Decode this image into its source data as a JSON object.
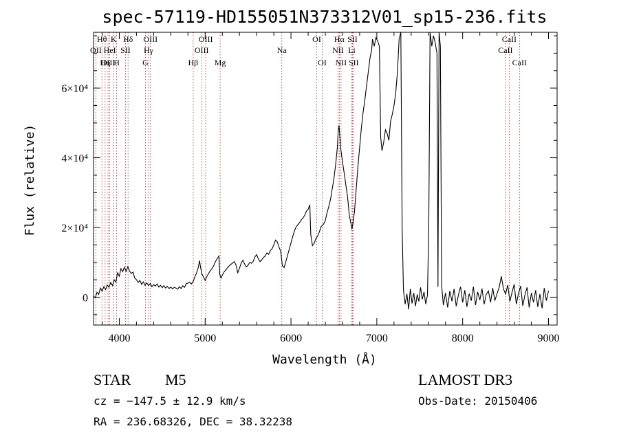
{
  "chart_data": {
    "type": "line",
    "title": "spec-57119-HD155051N373312V01_sp15-236.fits",
    "xlabel": "Wavelength (Å)",
    "ylabel": "Flux (relative)",
    "xlim": [
      3700,
      9100
    ],
    "ylim": [
      -8000,
      76000
    ],
    "x_ticks": [
      4000,
      5000,
      6000,
      7000,
      8000,
      9000
    ],
    "y_ticks": [
      {
        "value": 0,
        "label": "0"
      },
      {
        "value": 20000,
        "label": "2×10⁴"
      },
      {
        "value": 40000,
        "label": "4×10⁴"
      },
      {
        "value": 60000,
        "label": "6×10⁴"
      }
    ],
    "spectral_lines": [
      {
        "label": "Hθ",
        "wavelength": 3798,
        "row": 1
      },
      {
        "label": "OII",
        "wavelength": 3727,
        "row": 2
      },
      {
        "label": "OIII",
        "wavelength": 3869,
        "row": 3
      },
      {
        "label": "K",
        "wavelength": 3934,
        "row": 1
      },
      {
        "label": "Hη",
        "wavelength": 3835,
        "row": 3
      },
      {
        "label": "HeI",
        "wavelength": 3889,
        "row": 2
      },
      {
        "label": "H",
        "wavelength": 3969,
        "row": 3
      },
      {
        "label": "SII",
        "wavelength": 4072,
        "row": 2
      },
      {
        "label": "Hδ",
        "wavelength": 4102,
        "row": 1
      },
      {
        "label": "OIII",
        "wavelength": 4363,
        "row": 1
      },
      {
        "label": "Hγ",
        "wavelength": 4341,
        "row": 2
      },
      {
        "label": "G",
        "wavelength": 4305,
        "row": 3
      },
      {
        "label": "Hβ",
        "wavelength": 4861,
        "row": 3
      },
      {
        "label": "OIII",
        "wavelength": 5007,
        "row": 1
      },
      {
        "label": "OIII",
        "wavelength": 4959,
        "row": 2
      },
      {
        "label": "Mg",
        "wavelength": 5175,
        "row": 3
      },
      {
        "label": "Na",
        "wavelength": 5893,
        "row": 2
      },
      {
        "label": "OI",
        "wavelength": 6300,
        "row": 1
      },
      {
        "label": "OI",
        "wavelength": 6364,
        "row": 3
      },
      {
        "label": "Hα",
        "wavelength": 6563,
        "row": 1
      },
      {
        "label": "NII",
        "wavelength": 6548,
        "row": 2
      },
      {
        "label": "NII",
        "wavelength": 6583,
        "row": 3
      },
      {
        "label": "SII",
        "wavelength": 6716,
        "row": 1
      },
      {
        "label": "Li",
        "wavelength": 6708,
        "row": 2
      },
      {
        "label": "SII",
        "wavelength": 6731,
        "row": 3
      },
      {
        "label": "CaII",
        "wavelength": 8498,
        "row": 2
      },
      {
        "label": "CaII",
        "wavelength": 8542,
        "row": 1
      },
      {
        "label": "CaII",
        "wavelength": 8662,
        "row": 3
      }
    ],
    "series": [
      {
        "name": "flux",
        "points": [
          [
            3700,
            300
          ],
          [
            3720,
            -200
          ],
          [
            3740,
            1400
          ],
          [
            3760,
            800
          ],
          [
            3780,
            2600
          ],
          [
            3800,
            1700
          ],
          [
            3820,
            3000
          ],
          [
            3840,
            2200
          ],
          [
            3860,
            3500
          ],
          [
            3880,
            2800
          ],
          [
            3900,
            4200
          ],
          [
            3920,
            3300
          ],
          [
            3940,
            5000
          ],
          [
            3960,
            4300
          ],
          [
            3980,
            7000
          ],
          [
            4000,
            6000
          ],
          [
            4020,
            8200
          ],
          [
            4040,
            7300
          ],
          [
            4060,
            8600
          ],
          [
            4080,
            7400
          ],
          [
            4100,
            8800
          ],
          [
            4120,
            7500
          ],
          [
            4140,
            6800
          ],
          [
            4160,
            7200
          ],
          [
            4180,
            5500
          ],
          [
            4200,
            5000
          ],
          [
            4220,
            4200
          ],
          [
            4240,
            4800
          ],
          [
            4260,
            3700
          ],
          [
            4280,
            4400
          ],
          [
            4300,
            3400
          ],
          [
            4320,
            4100
          ],
          [
            4340,
            3300
          ],
          [
            4360,
            3900
          ],
          [
            4380,
            3000
          ],
          [
            4400,
            3600
          ],
          [
            4420,
            3200
          ],
          [
            4440,
            3800
          ],
          [
            4460,
            2900
          ],
          [
            4480,
            3400
          ],
          [
            4500,
            2700
          ],
          [
            4520,
            3300
          ],
          [
            4540,
            2600
          ],
          [
            4560,
            3100
          ],
          [
            4580,
            2500
          ],
          [
            4600,
            2900
          ],
          [
            4620,
            2400
          ],
          [
            4640,
            2800
          ],
          [
            4660,
            2600
          ],
          [
            4680,
            2300
          ],
          [
            4700,
            3000
          ],
          [
            4720,
            2500
          ],
          [
            4740,
            3300
          ],
          [
            4760,
            2800
          ],
          [
            4780,
            3900
          ],
          [
            4800,
            4000
          ],
          [
            4820,
            4300
          ],
          [
            4840,
            3800
          ],
          [
            4860,
            4500
          ],
          [
            4880,
            5800
          ],
          [
            4900,
            7000
          ],
          [
            4920,
            8500
          ],
          [
            4935,
            10500
          ],
          [
            4945,
            8800
          ],
          [
            4960,
            6800
          ],
          [
            4980,
            5800
          ],
          [
            5000,
            4800
          ],
          [
            5020,
            6000
          ],
          [
            5040,
            6800
          ],
          [
            5060,
            7600
          ],
          [
            5080,
            8200
          ],
          [
            5100,
            9000
          ],
          [
            5120,
            10200
          ],
          [
            5140,
            11000
          ],
          [
            5160,
            11800
          ],
          [
            5170,
            6500
          ],
          [
            5185,
            5500
          ],
          [
            5200,
            6300
          ],
          [
            5220,
            7200
          ],
          [
            5240,
            7800
          ],
          [
            5260,
            8400
          ],
          [
            5280,
            9000
          ],
          [
            5300,
            9400
          ],
          [
            5320,
            9800
          ],
          [
            5340,
            10200
          ],
          [
            5360,
            9200
          ],
          [
            5380,
            7000
          ],
          [
            5400,
            8300
          ],
          [
            5420,
            9800
          ],
          [
            5440,
            10600
          ],
          [
            5460,
            9500
          ],
          [
            5480,
            8700
          ],
          [
            5500,
            9200
          ],
          [
            5520,
            10000
          ],
          [
            5540,
            9700
          ],
          [
            5560,
            10300
          ],
          [
            5580,
            11600
          ],
          [
            5600,
            12200
          ],
          [
            5620,
            11000
          ],
          [
            5640,
            10200
          ],
          [
            5660,
            10700
          ],
          [
            5680,
            11400
          ],
          [
            5700,
            11800
          ],
          [
            5720,
            12700
          ],
          [
            5740,
            12300
          ],
          [
            5760,
            13400
          ],
          [
            5780,
            13900
          ],
          [
            5800,
            15000
          ],
          [
            5820,
            16400
          ],
          [
            5840,
            15900
          ],
          [
            5860,
            14400
          ],
          [
            5880,
            13200
          ],
          [
            5900,
            9000
          ],
          [
            5920,
            8500
          ],
          [
            5940,
            10200
          ],
          [
            5960,
            12000
          ],
          [
            5980,
            13800
          ],
          [
            6000,
            15600
          ],
          [
            6020,
            17400
          ],
          [
            6040,
            19000
          ],
          [
            6060,
            20200
          ],
          [
            6080,
            20800
          ],
          [
            6100,
            21400
          ],
          [
            6120,
            22200
          ],
          [
            6140,
            22700
          ],
          [
            6160,
            23500
          ],
          [
            6180,
            24700
          ],
          [
            6200,
            25200
          ],
          [
            6220,
            26500
          ],
          [
            6230,
            18000
          ],
          [
            6250,
            14800
          ],
          [
            6270,
            15500
          ],
          [
            6290,
            16800
          ],
          [
            6310,
            17500
          ],
          [
            6330,
            18700
          ],
          [
            6350,
            20200
          ],
          [
            6380,
            21000
          ],
          [
            6400,
            22000
          ],
          [
            6420,
            24200
          ],
          [
            6440,
            26000
          ],
          [
            6460,
            28000
          ],
          [
            6480,
            31000
          ],
          [
            6500,
            34000
          ],
          [
            6520,
            38000
          ],
          [
            6540,
            43000
          ],
          [
            6550,
            47500
          ],
          [
            6560,
            49300
          ],
          [
            6570,
            46000
          ],
          [
            6580,
            42500
          ],
          [
            6600,
            38800
          ],
          [
            6620,
            35500
          ],
          [
            6640,
            32000
          ],
          [
            6660,
            28500
          ],
          [
            6680,
            23500
          ],
          [
            6700,
            21000
          ],
          [
            6710,
            19500
          ],
          [
            6720,
            21000
          ],
          [
            6740,
            24500
          ],
          [
            6760,
            31000
          ],
          [
            6780,
            37500
          ],
          [
            6800,
            43000
          ],
          [
            6820,
            48500
          ],
          [
            6840,
            53000
          ],
          [
            6860,
            56500
          ],
          [
            6880,
            60500
          ],
          [
            6900,
            64500
          ],
          [
            6920,
            68500
          ],
          [
            6940,
            71000
          ],
          [
            6950,
            74000
          ],
          [
            6970,
            72000
          ],
          [
            6990,
            74500
          ],
          [
            7010,
            73500
          ],
          [
            7030,
            72000
          ],
          [
            7045,
            46000
          ],
          [
            7060,
            42000
          ],
          [
            7080,
            44500
          ],
          [
            7100,
            48000
          ],
          [
            7120,
            47000
          ],
          [
            7140,
            45000
          ],
          [
            7160,
            50500
          ],
          [
            7180,
            52500
          ],
          [
            7200,
            55000
          ],
          [
            7220,
            58500
          ],
          [
            7240,
            64500
          ],
          [
            7260,
            74000
          ],
          [
            7280,
            76000
          ],
          [
            7295,
            20000
          ],
          [
            7310,
            2000
          ],
          [
            7330,
            -2000
          ],
          [
            7350,
            1000
          ],
          [
            7370,
            -3500
          ],
          [
            7390,
            2400
          ],
          [
            7410,
            -1800
          ],
          [
            7430,
            1200
          ],
          [
            7450,
            -2600
          ],
          [
            7470,
            800
          ],
          [
            7490,
            -1200
          ],
          [
            7510,
            2800
          ],
          [
            7530,
            -600
          ],
          [
            7550,
            1500
          ],
          [
            7570,
            -2000
          ],
          [
            7590,
            600
          ],
          [
            7605,
            20000
          ],
          [
            7620,
            76000
          ],
          [
            7640,
            72000
          ],
          [
            7660,
            75000
          ],
          [
            7680,
            73000
          ],
          [
            7700,
            70000
          ],
          [
            7712,
            3000
          ],
          [
            7725,
            76000
          ],
          [
            7740,
            72000
          ],
          [
            7755,
            3500
          ],
          [
            7775,
            -2300
          ],
          [
            7800,
            1200
          ],
          [
            7825,
            -3000
          ],
          [
            7850,
            1800
          ],
          [
            7875,
            -1200
          ],
          [
            7900,
            2400
          ],
          [
            7925,
            -2600
          ],
          [
            7950,
            600
          ],
          [
            7975,
            3000
          ],
          [
            8000,
            -1500
          ],
          [
            8025,
            2000
          ],
          [
            8050,
            -2800
          ],
          [
            8075,
            1000
          ],
          [
            8100,
            -1000
          ],
          [
            8125,
            3000
          ],
          [
            8150,
            -2300
          ],
          [
            8175,
            1500
          ],
          [
            8200,
            -800
          ],
          [
            8225,
            2500
          ],
          [
            8250,
            -2000
          ],
          [
            8275,
            800
          ],
          [
            8300,
            1800
          ],
          [
            8325,
            -1500
          ],
          [
            8350,
            2600
          ],
          [
            8375,
            -1000
          ],
          [
            8400,
            1000
          ],
          [
            8425,
            2800
          ],
          [
            8450,
            6000
          ],
          [
            8475,
            2400
          ],
          [
            8500,
            900
          ],
          [
            8525,
            3500
          ],
          [
            8550,
            -1200
          ],
          [
            8575,
            1400
          ],
          [
            8600,
            3700
          ],
          [
            8625,
            -2000
          ],
          [
            8650,
            1000
          ],
          [
            8675,
            3200
          ],
          [
            8700,
            -2500
          ],
          [
            8725,
            600
          ],
          [
            8750,
            2800
          ],
          [
            8775,
            -3000
          ],
          [
            8800,
            1200
          ],
          [
            8825,
            -1500
          ],
          [
            8850,
            2000
          ],
          [
            8875,
            -2800
          ],
          [
            8900,
            900
          ],
          [
            8925,
            -3200
          ],
          [
            8950,
            2600
          ],
          [
            8975,
            -1000
          ],
          [
            9000,
            1800
          ]
        ]
      }
    ]
  },
  "info": {
    "object_class": "STAR",
    "subclass": "M5",
    "survey": "LAMOST DR3",
    "redshift": "cz = −147.5 ± 12.9 km/s",
    "obs_date": "Obs-Date: 20150406",
    "coords": "RA = 236.68326, DEC =  38.32238"
  }
}
